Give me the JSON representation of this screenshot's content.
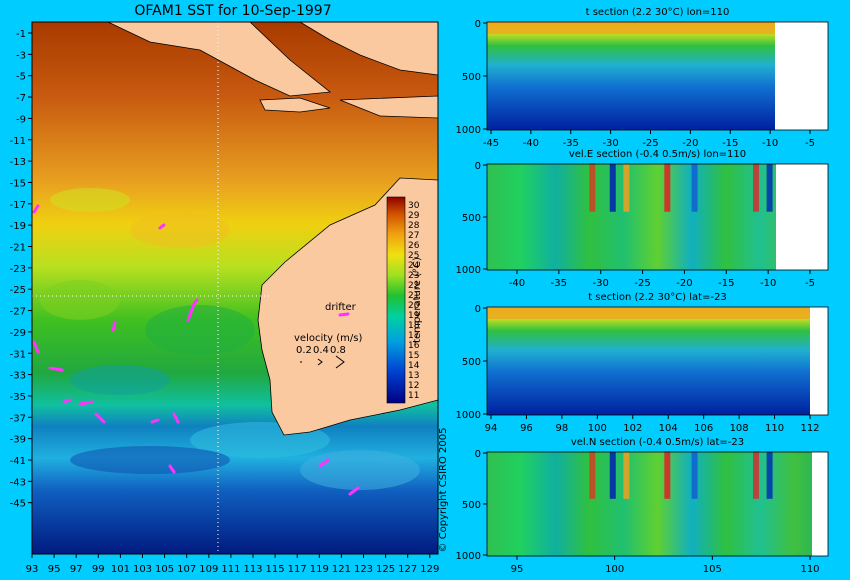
{
  "map": {
    "title": "OFAM1 SST for 10-Sep-1997",
    "lat_ticks": [
      "-1",
      "-3",
      "-5",
      "-7",
      "-9",
      "-11",
      "-13",
      "-15",
      "-17",
      "-19",
      "-21",
      "-23",
      "-25",
      "-27",
      "-29",
      "-31",
      "-33",
      "-35",
      "-37",
      "-39",
      "-41",
      "-43",
      "-45"
    ],
    "lon_ticks": [
      "93",
      "95",
      "97",
      "99",
      "101",
      "103",
      "105",
      "107",
      "109",
      "111",
      "113",
      "115",
      "117",
      "119",
      "121",
      "123",
      "125",
      "127",
      "129"
    ],
    "drifter_label": "drifter",
    "velocity_label": "velocity (m/s)",
    "velocity_scale": [
      "0.2",
      "0.4",
      "0.8"
    ],
    "colorbar_label": "temperature (°C)",
    "colorbar_ticks": [
      "30",
      "29",
      "28",
      "27",
      "26",
      "25",
      "24",
      "23",
      "22",
      "21",
      "20",
      "19",
      "18",
      "17",
      "16",
      "15",
      "14",
      "13",
      "12",
      "11"
    ],
    "copyright": "© Copyright CSIRO 2005",
    "colors": {
      "land": "#fbc9a0",
      "background": "#00ccff",
      "drifter": "#ff33ff"
    }
  },
  "panels": [
    {
      "title": "t section (2.2     30°C) lon=110",
      "y_ticks": [
        "0",
        "500",
        "1000"
      ],
      "x_ticks": [
        "-45",
        "-40",
        "-35",
        "-30",
        "-25",
        "-20",
        "-15",
        "-10",
        "-5"
      ]
    },
    {
      "title": "vel.E section (-0.4     0.5m/s) lon=110",
      "y_ticks": [
        "0",
        "500",
        "1000"
      ],
      "x_ticks": [
        "-40",
        "-35",
        "-30",
        "-25",
        "-20",
        "-15",
        "-10",
        "-5"
      ]
    },
    {
      "title": "t section (2.2     30°C) lat=-23",
      "y_ticks": [
        "0",
        "500",
        "1000"
      ],
      "x_ticks": [
        "94",
        "96",
        "98",
        "100",
        "102",
        "104",
        "106",
        "108",
        "110",
        "112"
      ]
    },
    {
      "title": "vel.N section (-0.4     0.5m/s) lat=-23",
      "y_ticks": [
        "0",
        "500",
        "1000"
      ],
      "x_ticks": [
        "95",
        "100",
        "105",
        "110"
      ]
    }
  ]
}
